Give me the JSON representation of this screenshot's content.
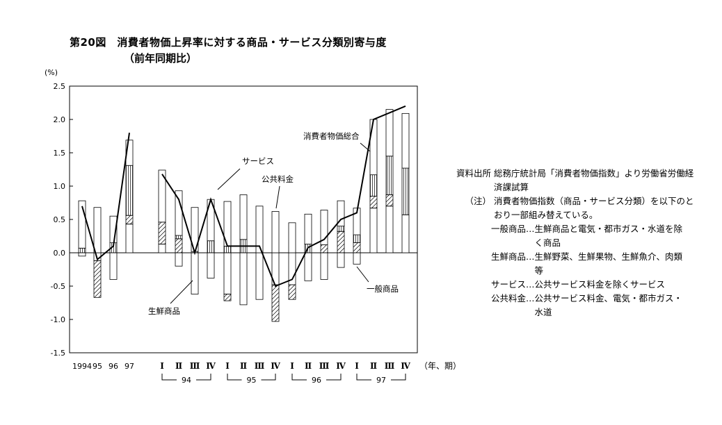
{
  "figure": {
    "title": "第20図　消費者物価上昇率に対する商品・サービス分類別寄与度",
    "subtitle": "（前年同期比）"
  },
  "chart_data": {
    "type": "bar",
    "stacked": true,
    "y_unit": "(%)",
    "ylim": [
      -1.5,
      2.5
    ],
    "y_ticks": [
      "2.5",
      "2.0",
      "1.5",
      "1.0",
      "0.5",
      "0.0",
      "-0.5",
      "-1.0",
      "-1.5"
    ],
    "categories": [
      "1994",
      "95",
      "96",
      "97",
      "94 I",
      "94 II",
      "94 III",
      "94 IV",
      "95 I",
      "95 II",
      "95 III",
      "95 IV",
      "96 I",
      "96 II",
      "96 III",
      "96 IV",
      "97 I",
      "97 II",
      "97 III",
      "97 IV"
    ],
    "x_tick_labels": [
      "1994",
      "95",
      "96",
      "97",
      "Ⅰ",
      "Ⅱ",
      "Ⅲ",
      "Ⅳ",
      "Ⅰ",
      "Ⅱ",
      "Ⅲ",
      "Ⅳ",
      "Ⅰ",
      "Ⅱ",
      "Ⅲ",
      "Ⅳ",
      "Ⅰ",
      "Ⅱ",
      "Ⅲ",
      "Ⅳ"
    ],
    "x_unit": "（年、期）",
    "year_groups": [
      "94",
      "95",
      "96",
      "97"
    ],
    "series": [
      {
        "name": "一般商品",
        "values": [
          -0.05,
          -0.12,
          -0.4,
          0.43,
          0.13,
          -0.2,
          -0.62,
          -0.38,
          -0.62,
          -0.78,
          -0.7,
          -0.48,
          -0.48,
          -0.42,
          -0.4,
          -0.22,
          -0.17,
          0.67,
          0.7,
          0.57
        ]
      },
      {
        "name": "生鮮商品",
        "values": [
          0.0,
          -0.55,
          0.0,
          0.13,
          0.33,
          0.21,
          0.0,
          0.0,
          -0.1,
          0.0,
          0.0,
          -0.55,
          -0.22,
          0.0,
          0.12,
          0.32,
          0.15,
          0.18,
          0.17,
          0.0
        ]
      },
      {
        "name": "公共料金",
        "values": [
          0.07,
          0.0,
          0.15,
          0.75,
          0.0,
          0.05,
          0.02,
          0.18,
          0.1,
          0.2,
          0.0,
          0.0,
          0.0,
          0.13,
          0.0,
          0.08,
          0.12,
          0.32,
          0.58,
          0.7
        ]
      },
      {
        "name": "サービス",
        "values": [
          0.71,
          0.68,
          0.4,
          0.38,
          0.78,
          0.67,
          0.66,
          0.62,
          0.67,
          0.67,
          0.7,
          0.62,
          0.45,
          0.45,
          0.52,
          0.38,
          0.4,
          0.83,
          0.7,
          0.82
        ]
      }
    ],
    "line": {
      "name": "消費者物価総合",
      "values": [
        0.7,
        -0.1,
        0.1,
        1.8,
        1.18,
        0.8,
        0.0,
        0.8,
        0.1,
        0.1,
        0.1,
        -0.5,
        -0.4,
        0.08,
        0.2,
        0.5,
        0.6,
        2.0,
        2.1,
        2.2
      ]
    },
    "annotations": [
      "サービス",
      "公共料金",
      "消費者物価総合",
      "生鮮商品",
      "一般商品"
    ]
  },
  "notes": {
    "source_key": "資料出所",
    "source": "総務庁統計局「消費者物価指数」より労働省労働経済課試算",
    "note_key": "（注）",
    "note": "消費者物価指数（商品・サービス分類）を以下のとおり一部組み替えている。",
    "defs": [
      {
        "k": "一般商品…",
        "v": "生鮮商品と電気・都市ガス・水道を除く商品"
      },
      {
        "k": "生鮮商品…",
        "v": "生鮮野菜、生鮮果物、生鮮魚介、肉類等"
      },
      {
        "k": "サービス…",
        "v": "公共サービス料金を除くサービス"
      },
      {
        "k": "公共料金…",
        "v": "公共サービス料金、電気・都市ガス・水道"
      }
    ]
  }
}
